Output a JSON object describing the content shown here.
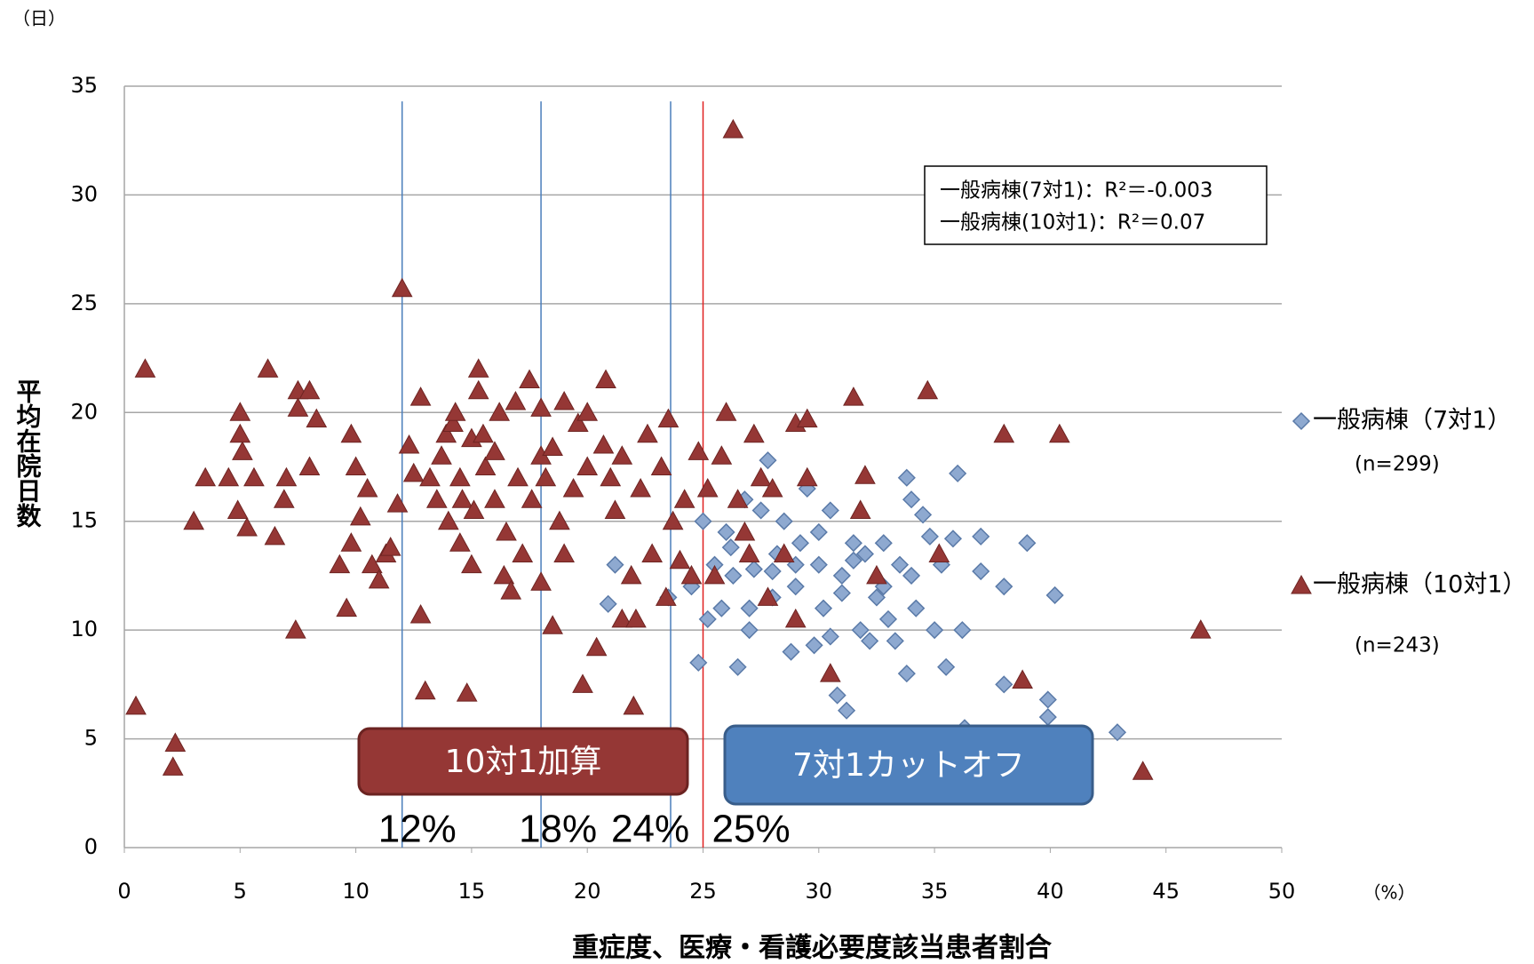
{
  "chart_data": {
    "type": "scatter",
    "y_unit": "（日）",
    "x_unit": "（%）",
    "ylabel": "平均在院日数",
    "xlabel": "重症度、医療・看護必要度該当患者割合",
    "xlim": [
      0,
      50
    ],
    "xticks": [
      0,
      5,
      10,
      15,
      20,
      25,
      30,
      35,
      40,
      45,
      50
    ],
    "ylim": [
      0,
      35
    ],
    "yticks": [
      0,
      5,
      10,
      15,
      20,
      25,
      30,
      35
    ],
    "grid": true,
    "r2_box": [
      "一般病棟(7対1)：R²＝-0.003",
      "一般病棟(10対1)：R²＝0.07"
    ],
    "reference_lines": [
      {
        "value": 12,
        "label": "12%",
        "color": "#4a7ebb"
      },
      {
        "value": 18,
        "label": "18%",
        "color": "#4a7ebb"
      },
      {
        "value": 23.6,
        "label": "24%",
        "color": "#4a7ebb"
      },
      {
        "value": 25,
        "label": "25%",
        "color": "#e02020"
      }
    ],
    "boxes": [
      {
        "text": "10対1加算",
        "color": "#953735"
      },
      {
        "text": "7対1カットオフ",
        "color": "#4f81bd"
      }
    ],
    "series": [
      {
        "name": "一般病棟（7対1）",
        "count_label": "(n=299)",
        "marker": "diamond",
        "color": "#8ea9d0",
        "x": [
          20.9,
          21.2,
          23.5,
          24.5,
          24.8,
          25,
          25.5,
          25.8,
          26,
          26.3,
          26.5,
          26.8,
          27,
          27.2,
          27.5,
          27.8,
          28,
          28.2,
          28.5,
          28.8,
          29,
          29.2,
          29.5,
          29.8,
          30,
          30.2,
          30.5,
          30.8,
          31,
          31.2,
          31.5,
          31.8,
          32,
          32.2,
          32.5,
          32.8,
          33,
          33.3,
          33.5,
          33.8,
          33.8,
          34,
          34.2,
          34.5,
          34.8,
          35,
          35.3,
          35.5,
          35.8,
          36,
          36.2,
          36.3,
          37,
          37,
          38,
          38,
          39,
          39.9,
          39.9,
          40.2,
          42.9,
          29,
          30,
          31,
          28,
          27,
          26.2,
          25.2,
          30.5,
          32.8,
          34,
          31.5
        ],
        "values": [
          11.2,
          13,
          11.5,
          12,
          8.5,
          15,
          13,
          11,
          14.5,
          12.5,
          8.3,
          16,
          10,
          12.8,
          15.5,
          17.8,
          11.5,
          13.5,
          15,
          9,
          12,
          14,
          16.5,
          9.3,
          13,
          11,
          15.5,
          7,
          12.5,
          6.3,
          14,
          10,
          13.5,
          9.5,
          11.5,
          14,
          10.5,
          9.5,
          13,
          8,
          17,
          16,
          11,
          15.3,
          14.3,
          10,
          13,
          8.3,
          14.2,
          17.2,
          10,
          5.5,
          14.3,
          12.7,
          12,
          7.5,
          14,
          6.8,
          6,
          11.6,
          5.3,
          13,
          14.5,
          11.7,
          12.7,
          11,
          13.8,
          10.5,
          9.7,
          12,
          12.5,
          13.2
        ]
      },
      {
        "name": "一般病棟（10対1）",
        "count_label": "(n=243)",
        "marker": "triangle",
        "color": "#953735",
        "x": [
          0.5,
          0.9,
          2.1,
          2.2,
          3,
          3.5,
          4.5,
          4.9,
          5,
          5,
          5.1,
          5.3,
          5.6,
          6.2,
          6.5,
          6.9,
          7,
          7.4,
          7.5,
          7.5,
          8,
          8,
          8.3,
          9.3,
          9.6,
          9.8,
          9.8,
          10,
          10.2,
          10.5,
          10.7,
          11,
          11.3,
          11.5,
          11.8,
          12,
          12.3,
          12.5,
          12.8,
          12.8,
          13,
          13.2,
          13.5,
          13.7,
          13.9,
          14,
          14.2,
          14.3,
          14.5,
          14.5,
          14.6,
          14.8,
          15,
          15,
          15.1,
          15.3,
          15.3,
          15.5,
          15.6,
          16,
          16,
          16.2,
          16.4,
          16.5,
          16.7,
          16.9,
          17,
          17.2,
          17.5,
          17.6,
          18,
          18,
          18,
          18.2,
          18.5,
          18.5,
          18.8,
          19,
          19,
          19.4,
          19.6,
          19.8,
          20,
          20,
          20.4,
          20.7,
          20.8,
          21,
          21.2,
          21.5,
          21.5,
          21.9,
          22,
          22.1,
          22.3,
          22.6,
          22.8,
          23.2,
          23.4,
          23.5,
          23.7,
          24,
          24.2,
          24.5,
          24.8,
          25.2,
          25.5,
          25.8,
          26,
          26.3,
          26.5,
          26.8,
          27,
          27.2,
          27.5,
          27.8,
          28,
          28.5,
          29,
          29,
          29.5,
          29.5,
          30.5,
          31.5,
          31.8,
          32,
          32.5,
          34.7,
          35.2,
          38,
          38.8,
          40.4,
          44,
          46.5
        ],
        "values": [
          6.5,
          22,
          3.7,
          4.8,
          15,
          17,
          17,
          15.5,
          20,
          19,
          18.2,
          14.7,
          17,
          22,
          14.3,
          16,
          17,
          10,
          21,
          20.2,
          21,
          17.5,
          19.7,
          13,
          11,
          19,
          14,
          17.5,
          15.2,
          16.5,
          13,
          12.3,
          13.5,
          13.8,
          15.8,
          25.7,
          18.5,
          17.2,
          20.7,
          10.7,
          7.2,
          17,
          16,
          18,
          19,
          15,
          19.5,
          20,
          17,
          14,
          16,
          7.1,
          13,
          18.8,
          15.5,
          22,
          21,
          19,
          17.5,
          18.2,
          16,
          20,
          12.5,
          14.5,
          11.8,
          20.5,
          17,
          13.5,
          21.5,
          16,
          20.2,
          18,
          12.2,
          17,
          18.4,
          10.2,
          15,
          13.5,
          20.5,
          16.5,
          19.5,
          7.5,
          17.5,
          20,
          9.2,
          18.5,
          21.5,
          17,
          15.5,
          18,
          10.5,
          12.5,
          6.5,
          10.5,
          16.5,
          19,
          13.5,
          17.5,
          11.5,
          19.7,
          15,
          13.2,
          16,
          12.5,
          18.2,
          16.5,
          12.5,
          18,
          20,
          33,
          16,
          14.5,
          13.5,
          19,
          17,
          11.5,
          16.5,
          13.5,
          19.5,
          10.5,
          19.7,
          17,
          8,
          20.7,
          15.5,
          17.1,
          12.5,
          21,
          13.5,
          19,
          7.7,
          19,
          3.5,
          10
        ]
      }
    ]
  }
}
